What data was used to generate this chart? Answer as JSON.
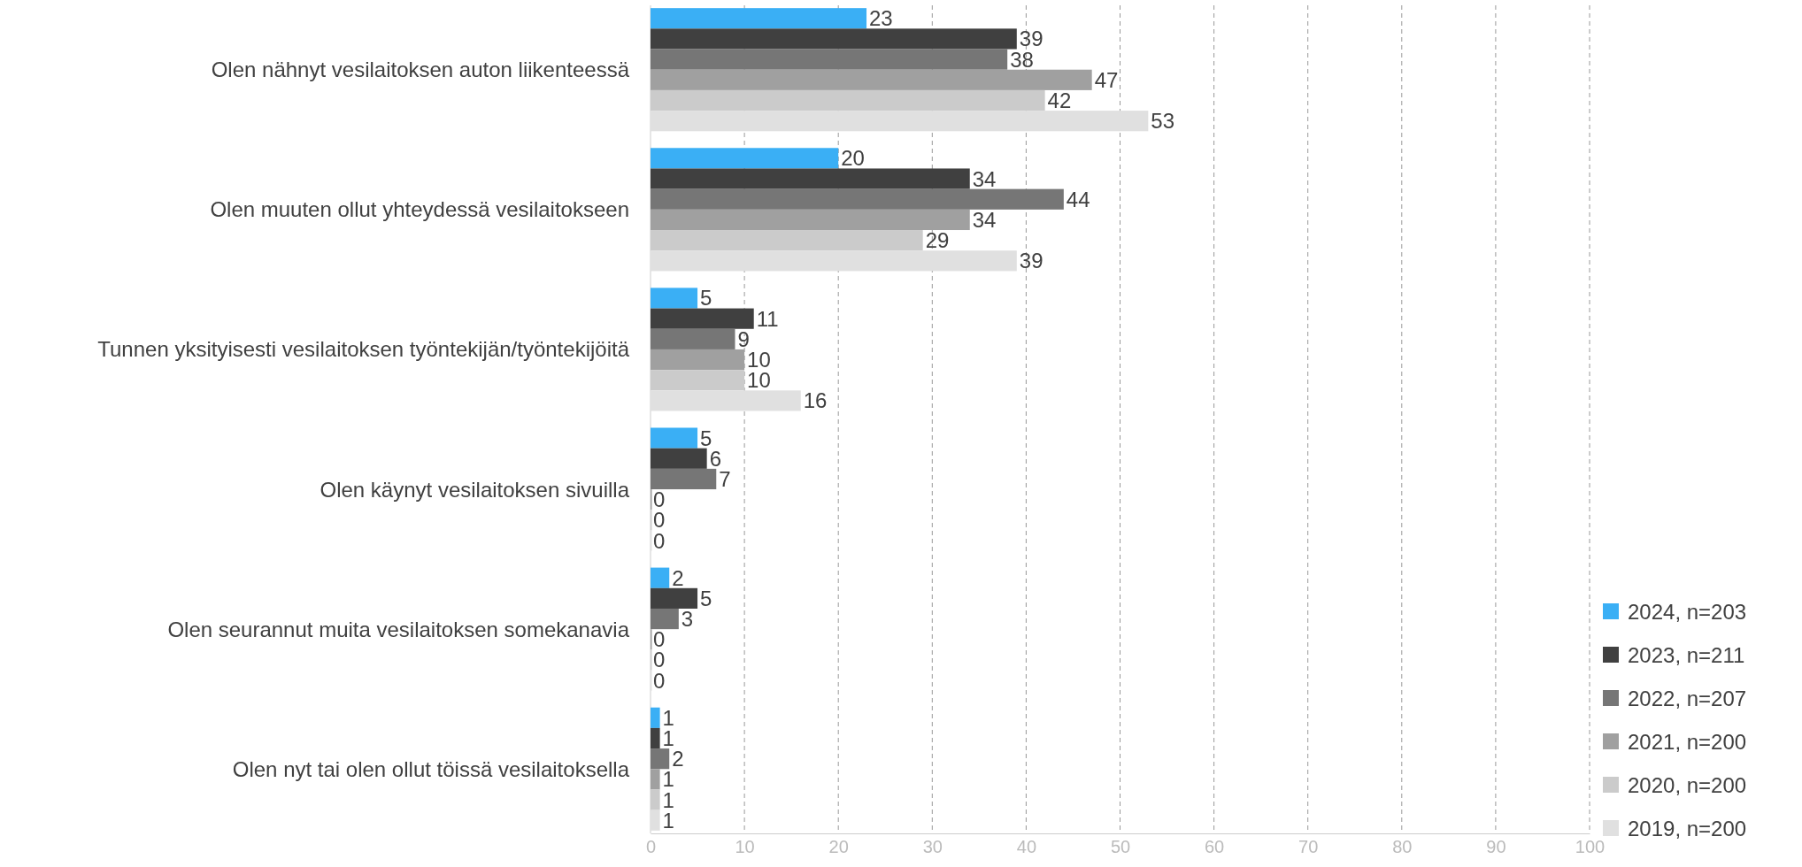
{
  "chart_data": {
    "type": "bar",
    "orientation": "horizontal",
    "categories": [
      "Olen nähnyt vesilaitoksen auton liikenteessä",
      "Olen muuten ollut yhteydessä vesilaitokseen",
      "Tunnen yksityisesti vesilaitoksen työntekijän/työntekijöitä",
      "Olen käynyt vesilaitoksen sivuilla",
      "Olen seurannut muita vesilaitoksen somekanavia",
      "Olen nyt tai olen ollut töissä vesilaitoksella"
    ],
    "series": [
      {
        "name": "2024, n=203",
        "color": "#3aaff5",
        "values": [
          23,
          20,
          5,
          5,
          2,
          1
        ]
      },
      {
        "name": "2023, n=211",
        "color": "#404040",
        "values": [
          39,
          34,
          11,
          6,
          5,
          1
        ]
      },
      {
        "name": "2022, n=207",
        "color": "#767676",
        "values": [
          38,
          44,
          9,
          7,
          3,
          2
        ]
      },
      {
        "name": "2021, n=200",
        "color": "#a0a0a0",
        "values": [
          47,
          34,
          10,
          0,
          0,
          1
        ]
      },
      {
        "name": "2020, n=200",
        "color": "#cbcbcb",
        "values": [
          42,
          29,
          10,
          0,
          0,
          1
        ]
      },
      {
        "name": "2019, n=200",
        "color": "#e0e0e0",
        "values": [
          53,
          39,
          16,
          0,
          0,
          1
        ]
      }
    ],
    "xlim": [
      0,
      100
    ],
    "xticks": [
      0,
      10,
      20,
      30,
      40,
      50,
      60,
      70,
      80,
      90,
      100
    ],
    "grid": "x",
    "legend": "bottom right",
    "data_labels": true
  }
}
